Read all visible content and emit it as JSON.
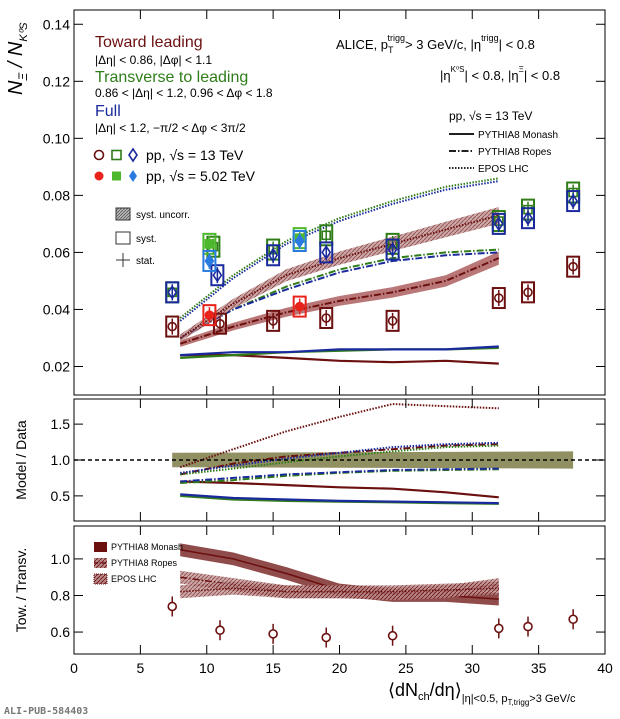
{
  "chart_data": {
    "type": "scatter",
    "xlabel": "⟨dN_ch/dη⟩ |η|<0.5, p_T,trigg>3 GeV/c",
    "xlabel_main": "⟨dN",
    "xlabel_sub1": "ch",
    "xlabel_mid": "/dη⟩",
    "xlabel_sub2": "|η|<0.5, p",
    "xlabel_sub3": "T,trigg",
    "xlabel_tail": ">3 GeV/c",
    "xlim": [
      0,
      40
    ],
    "x_ticks": [
      "0",
      "5",
      "10",
      "15",
      "20",
      "25",
      "30",
      "35",
      "40"
    ],
    "watermark": "ALI-PUB-584403",
    "colors": {
      "toward": "#6b0f0f",
      "transverse": "#2f7d18",
      "full": "#1a2a9c",
      "toward_5tev": "#e8231b",
      "transverse_5tev": "#4db82c",
      "full_5tev": "#2a7be0"
    },
    "panels": [
      {
        "name": "main",
        "ylabel": "N_Ξ / N_K0S",
        "ylabel_main": "N",
        "ylabel_sub": "Ξ",
        "ylabel_den": "N",
        "ylabel_den_sub": "K⁰S",
        "ylim": [
          0.01,
          0.145
        ],
        "y_ticks": [
          "0.02",
          "0.04",
          "0.06",
          "0.08",
          "0.10",
          "0.12",
          "0.14"
        ],
        "series": [
          {
            "name": "Toward, pp 13 TeV",
            "color": "#6b0f0f",
            "marker": "circle-open",
            "x": [
              7.4,
              11.0,
              15.0,
              19.0,
              24.0,
              32.0,
              34.2,
              37.6
            ],
            "y": [
              0.034,
              0.035,
              0.036,
              0.037,
              0.036,
              0.044,
              0.046,
              0.055
            ]
          },
          {
            "name": "Transverse, pp 13 TeV",
            "color": "#2f7d18",
            "marker": "square-open",
            "x": [
              7.4,
              10.5,
              15.0,
              19.0,
              24.0,
              32.0,
              34.2,
              37.6
            ],
            "y": [
              0.046,
              0.062,
              0.061,
              0.066,
              0.063,
              0.071,
              0.075,
              0.081
            ]
          },
          {
            "name": "Full, pp 13 TeV",
            "color": "#1a2a9c",
            "marker": "diamond-open",
            "x": [
              7.4,
              10.8,
              15.0,
              19.0,
              24.0,
              32.0,
              34.2,
              37.6
            ],
            "y": [
              0.046,
              0.052,
              0.059,
              0.06,
              0.061,
              0.07,
              0.072,
              0.078
            ]
          },
          {
            "name": "Toward, pp 5.02 TeV",
            "color": "#e8231b",
            "marker": "circle-filled",
            "x": [
              10.2,
              17.0
            ],
            "y": [
              0.038,
              0.041
            ]
          },
          {
            "name": "Transverse, pp 5.02 TeV",
            "color": "#4db82c",
            "marker": "square-filled",
            "x": [
              10.2,
              17.0
            ],
            "y": [
              0.063,
              0.065
            ]
          },
          {
            "name": "Full, pp 5.02 TeV",
            "color": "#2a7be0",
            "marker": "diamond-filled",
            "x": [
              10.2,
              17.0
            ],
            "y": [
              0.057,
              0.064
            ]
          }
        ],
        "models": [
          {
            "name": "PYTHIA8 Monash Toward",
            "color": "#6b0f0f",
            "style": "solid",
            "x": [
              8,
              12,
              16,
              20,
              24,
              28,
              32
            ],
            "y": [
              0.024,
              0.024,
              0.023,
              0.022,
              0.0215,
              0.022,
              0.021
            ]
          },
          {
            "name": "PYTHIA8 Monash Transverse",
            "color": "#2f7d18",
            "style": "solid",
            "x": [
              8,
              12,
              16,
              20,
              24,
              28,
              32
            ],
            "y": [
              0.023,
              0.024,
              0.025,
              0.0255,
              0.026,
              0.026,
              0.0265
            ]
          },
          {
            "name": "PYTHIA8 Monash Full",
            "color": "#1a2a9c",
            "style": "solid",
            "x": [
              8,
              12,
              16,
              20,
              24,
              28,
              32
            ],
            "y": [
              0.024,
              0.025,
              0.025,
              0.026,
              0.026,
              0.026,
              0.027
            ]
          },
          {
            "name": "PYTHIA8 Ropes Toward",
            "color": "#6b0f0f",
            "style": "dashdot",
            "x": [
              8,
              12,
              16,
              20,
              24,
              28,
              32
            ],
            "y": [
              0.028,
              0.034,
              0.039,
              0.043,
              0.046,
              0.05,
              0.058
            ]
          },
          {
            "name": "PYTHIA8 Ropes Transverse",
            "color": "#2f7d18",
            "style": "dashdot",
            "x": [
              8,
              12,
              16,
              20,
              24,
              28,
              32
            ],
            "y": [
              0.03,
              0.04,
              0.048,
              0.054,
              0.058,
              0.06,
              0.061
            ]
          },
          {
            "name": "PYTHIA8 Ropes Full",
            "color": "#1a2a9c",
            "style": "dashdot",
            "x": [
              8,
              12,
              16,
              20,
              24,
              28,
              32
            ],
            "y": [
              0.03,
              0.04,
              0.047,
              0.053,
              0.057,
              0.059,
              0.06
            ]
          },
          {
            "name": "EPOS LHC Toward",
            "color": "#6b0f0f",
            "style": "dotted",
            "x": [
              8,
              12,
              16,
              20,
              24,
              28,
              32
            ],
            "y": [
              0.03,
              0.042,
              0.052,
              0.058,
              0.063,
              0.068,
              0.073
            ]
          },
          {
            "name": "EPOS LHC Transverse",
            "color": "#2f7d18",
            "style": "dotted",
            "x": [
              8,
              12,
              16,
              20,
              24,
              28,
              32
            ],
            "y": [
              0.037,
              0.052,
              0.064,
              0.072,
              0.078,
              0.083,
              0.086
            ]
          },
          {
            "name": "EPOS LHC Full",
            "color": "#1a2a9c",
            "style": "dotted",
            "x": [
              8,
              12,
              16,
              20,
              24,
              28,
              32
            ],
            "y": [
              0.036,
              0.051,
              0.063,
              0.071,
              0.077,
              0.082,
              0.085
            ]
          }
        ]
      },
      {
        "name": "ratio-model-data",
        "ylabel": "Model / Data",
        "ylim": [
          0.15,
          1.85
        ],
        "y_ticks": [
          "0.5",
          "1.0",
          "1.5"
        ],
        "reference_line": 1.0,
        "models": [
          {
            "name": "Monash Toward",
            "color": "#6b0f0f",
            "style": "solid",
            "x": [
              8,
              12,
              16,
              20,
              24,
              28,
              32
            ],
            "y": [
              0.7,
              0.68,
              0.65,
              0.62,
              0.6,
              0.55,
              0.48
            ]
          },
          {
            "name": "Monash Transverse",
            "color": "#2f7d18",
            "style": "solid",
            "x": [
              8,
              12,
              16,
              20,
              24,
              28,
              32
            ],
            "y": [
              0.5,
              0.45,
              0.43,
              0.42,
              0.41,
              0.4,
              0.39
            ]
          },
          {
            "name": "Monash Full",
            "color": "#1a2a9c",
            "style": "solid",
            "x": [
              8,
              12,
              16,
              20,
              24,
              28,
              32
            ],
            "y": [
              0.52,
              0.47,
              0.45,
              0.43,
              0.42,
              0.41,
              0.4
            ]
          },
          {
            "name": "Ropes Toward",
            "color": "#6b0f0f",
            "style": "dashdot",
            "x": [
              8,
              12,
              16,
              20,
              24,
              28,
              32
            ],
            "y": [
              0.8,
              0.95,
              1.05,
              1.1,
              1.15,
              1.2,
              1.22
            ]
          },
          {
            "name": "Ropes Transverse",
            "color": "#2f7d18",
            "style": "dashdot",
            "x": [
              8,
              12,
              16,
              20,
              24,
              28,
              32
            ],
            "y": [
              0.68,
              0.72,
              0.78,
              0.82,
              0.85,
              0.86,
              0.87
            ]
          },
          {
            "name": "Ropes Full",
            "color": "#1a2a9c",
            "style": "dashdot",
            "x": [
              8,
              12,
              16,
              20,
              24,
              28,
              32
            ],
            "y": [
              0.7,
              0.75,
              0.8,
              0.83,
              0.86,
              0.87,
              0.88
            ]
          },
          {
            "name": "EPOS Toward",
            "color": "#6b0f0f",
            "style": "dotted",
            "x": [
              8,
              12,
              16,
              20,
              24,
              28,
              32
            ],
            "y": [
              0.9,
              1.15,
              1.4,
              1.6,
              1.78,
              1.75,
              1.72
            ]
          },
          {
            "name": "EPOS Transverse",
            "color": "#2f7d18",
            "style": "dotted",
            "x": [
              8,
              12,
              16,
              20,
              24,
              28,
              32
            ],
            "y": [
              0.8,
              0.88,
              0.97,
              1.05,
              1.12,
              1.18,
              1.2
            ]
          },
          {
            "name": "EPOS Full",
            "color": "#1a2a9c",
            "style": "dotted",
            "x": [
              8,
              12,
              16,
              20,
              24,
              28,
              32
            ],
            "y": [
              0.82,
              0.92,
              1.02,
              1.1,
              1.18,
              1.22,
              1.24
            ]
          }
        ],
        "uncertainty_band": {
          "x": [
            7.4,
            37.6
          ],
          "y_low": [
            0.9,
            0.88
          ],
          "y_high": [
            1.1,
            1.12
          ]
        }
      },
      {
        "name": "ratio-toward-transverse",
        "ylabel": "Tow. / Transv.",
        "ylim": [
          0.48,
          1.18
        ],
        "y_ticks": [
          "0.6",
          "0.8",
          "1.0"
        ],
        "legend": [
          "PYTHIA8 Monash",
          "PYTHIA8 Ropes",
          "EPOS LHC"
        ],
        "data": {
          "color": "#6b0f0f",
          "x": [
            7.4,
            11.0,
            15.0,
            19.0,
            24.0,
            32.0,
            34.2,
            37.6
          ],
          "y": [
            0.74,
            0.61,
            0.59,
            0.57,
            0.58,
            0.62,
            0.63,
            0.67
          ]
        },
        "models": [
          {
            "name": "PYTHIA8 Monash",
            "color": "#6b0f0f",
            "style": "solid",
            "x": [
              8,
              12,
              16,
              20,
              24,
              28,
              32
            ],
            "y": [
              1.05,
              1.0,
              0.92,
              0.83,
              0.8,
              0.8,
              0.78
            ]
          },
          {
            "name": "PYTHIA8 Ropes",
            "color": "#6b0f0f",
            "style": "dashdot",
            "x": [
              8,
              12,
              16,
              20,
              24,
              28,
              32
            ],
            "y": [
              0.9,
              0.86,
              0.82,
              0.82,
              0.81,
              0.82,
              0.86
            ]
          },
          {
            "name": "EPOS LHC",
            "color": "#6b0f0f",
            "style": "dotted",
            "x": [
              8,
              12,
              16,
              20,
              24,
              28,
              32
            ],
            "y": [
              0.82,
              0.84,
              0.82,
              0.82,
              0.82,
              0.83,
              0.84
            ]
          }
        ]
      }
    ]
  },
  "legend": {
    "toward": {
      "title": "Toward leading",
      "cut": "|Δη| < 0.86, |Δφ| < 1.1"
    },
    "transverse": {
      "title": "Transverse to leading",
      "cut": "0.86 < |Δη| < 1.2, 0.96 < Δφ < 1.8"
    },
    "full": {
      "title": "Full",
      "cut": "|Δη| < 1.2, −π/2 < Δφ < 3π/2"
    },
    "pp13": "pp, √s = 13 TeV",
    "pp502": "pp, √s = 5.02 TeV",
    "syst_uncorr": "syst. uncorr.",
    "syst": "syst.",
    "stat": "stat."
  },
  "header": {
    "line1": "ALICE, p",
    "line1_sup": "trigg",
    "line1_sub": "T",
    "line1_b": "> 3 GeV/c, |η",
    "line1_b_sup": "trigg",
    "line1_c": "| < 0.8",
    "line2a": "|η",
    "line2_sup": "K⁰S",
    "line2b": "| < 0.8, |η",
    "line2_sup2": "Ξ",
    "line2c": "| < 0.8"
  },
  "model_legend": {
    "title": "pp, √s = 13 TeV",
    "items": [
      "PYTHIA8 Monash",
      "PYTHIA8 Ropes",
      "EPOS LHC"
    ]
  }
}
